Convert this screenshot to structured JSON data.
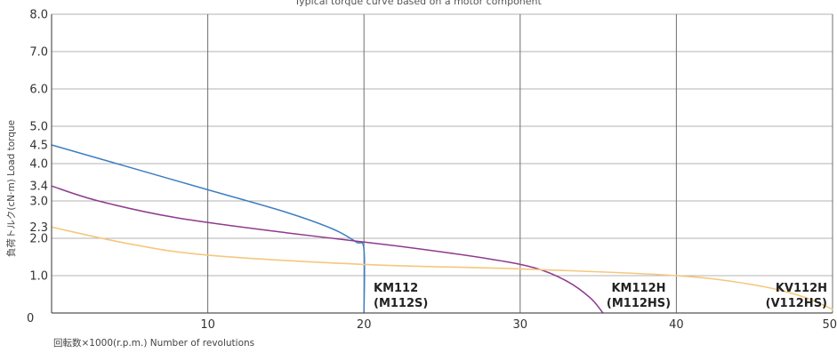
{
  "chart_data": {
    "type": "line",
    "title_fragment": "Typical torque curve based on a motor component",
    "xlabel": "回転数×1000(r.p.m.) Number of revolutions",
    "ylabel": "負荷トルク(cN·m) Load torque",
    "xlim": [
      0,
      50
    ],
    "ylim": [
      0,
      8
    ],
    "x_ticks": [
      0,
      10,
      20,
      30,
      40,
      50
    ],
    "x_tick_labels": [
      "0",
      "10",
      "20",
      "30",
      "40",
      "50"
    ],
    "y_ticks": [
      1.0,
      2.0,
      2.3,
      3.0,
      3.4,
      4.0,
      4.5,
      5.0,
      6.0,
      7.0,
      8.0
    ],
    "y_tick_labels": [
      "1.0",
      "2.0",
      "2.3",
      "3.0",
      "3.4",
      "4.0",
      "4.5",
      "5.0",
      "6.0",
      "7.0",
      "8.0"
    ],
    "y_gridlines": [
      1.0,
      2.0,
      3.0,
      4.0,
      5.0,
      6.0,
      7.0,
      8.0
    ],
    "x_gridlines": [
      10,
      20,
      30,
      40,
      50
    ],
    "grid": true,
    "series": [
      {
        "line1": "KM112",
        "line2": "(M112S)",
        "color": "#3d7fc1",
        "points": [
          [
            0,
            4.5
          ],
          [
            5,
            3.9
          ],
          [
            10,
            3.3
          ],
          [
            15,
            2.7
          ],
          [
            18,
            2.25
          ],
          [
            19.5,
            1.9
          ],
          [
            20,
            1.7
          ],
          [
            20,
            0
          ]
        ]
      },
      {
        "line1": "KM112H",
        "line2": "(M112HS)",
        "color": "#8e3a8e",
        "points": [
          [
            0,
            3.4
          ],
          [
            3,
            3.0
          ],
          [
            8,
            2.55
          ],
          [
            15,
            2.15
          ],
          [
            22,
            1.8
          ],
          [
            28,
            1.45
          ],
          [
            31,
            1.2
          ],
          [
            33,
            0.85
          ],
          [
            34.5,
            0.4
          ],
          [
            35.3,
            0
          ]
        ]
      },
      {
        "line1": "KV112H",
        "line2": "(V112HS)",
        "color": "#f5c77e",
        "points": [
          [
            0,
            2.3
          ],
          [
            5,
            1.85
          ],
          [
            10,
            1.55
          ],
          [
            20,
            1.3
          ],
          [
            30,
            1.18
          ],
          [
            40,
            1.0
          ],
          [
            45,
            0.75
          ],
          [
            48,
            0.45
          ],
          [
            50,
            0.1
          ]
        ]
      }
    ]
  }
}
